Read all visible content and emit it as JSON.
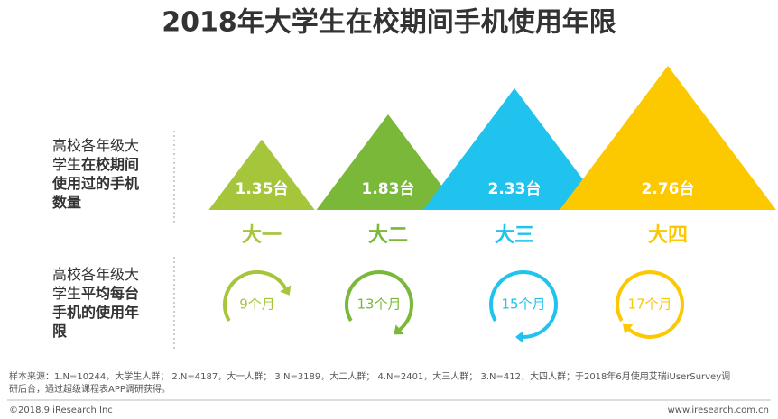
{
  "chart_data": {
    "type": "triangle",
    "title": "2018年大学生在校期间手机使用年限",
    "row1_label": [
      "高校各年级大",
      "学生",
      "在校期间",
      "使用过的手机",
      "数量"
    ],
    "row2_label": [
      "高校各年级大",
      "学生",
      "平均每台",
      "手机的使用年",
      "限"
    ],
    "categories": [
      "大一",
      "大二",
      "大三",
      "大四"
    ],
    "colors": [
      "#a5c63b",
      "#7ab83a",
      "#1fc3ee",
      "#fcc800"
    ],
    "values": [
      1.35,
      1.83,
      2.33,
      2.76
    ],
    "value_labels": [
      "1.35台",
      "1.83台",
      "2.33台",
      "2.76台"
    ],
    "months": [
      9,
      13,
      15,
      17
    ],
    "month_labels": [
      "9个月",
      "13个月",
      "15个月",
      "17个月"
    ],
    "source": [
      "样本来源：1.N=10244，大学生人群； 2.N=4187，大一人群； 3.N=3189，大二人群； 4.N=2401，大三人群； 3.N=412，大四人群；于2018年6月使用艾瑞iUserSurvey调",
      "研后台，通过超级课程表APP调研获得。"
    ],
    "footer_left": "©2018.9 iResearch Inc",
    "footer_right": "www.iresearch.com.cn"
  }
}
